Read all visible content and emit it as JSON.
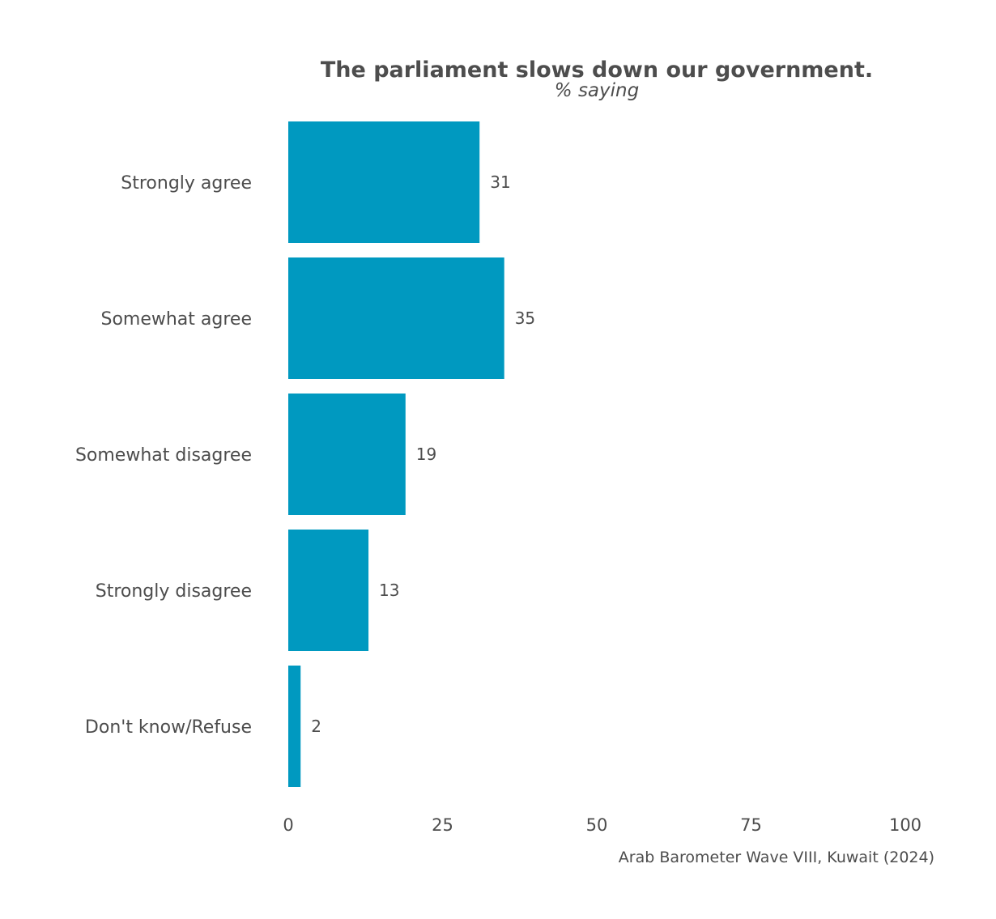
{
  "chart_data": {
    "type": "bar",
    "orientation": "horizontal",
    "title": "The parliament slows down our government.",
    "subtitle": "% saying",
    "caption": "Arab Barometer Wave VIII, Kuwait (2024)",
    "categories": [
      "Strongly agree",
      "Somewhat agree",
      "Somewhat disagree",
      "Strongly disagree",
      "Don't know/Refuse"
    ],
    "values": [
      31,
      35,
      19,
      13,
      2
    ],
    "value_labels": [
      "31",
      "35",
      "19",
      "13",
      "2"
    ],
    "xlim": [
      0,
      100
    ],
    "xticks": [
      0,
      25,
      50,
      75,
      100
    ],
    "xtick_labels": [
      "0",
      "25",
      "50",
      "75",
      "100"
    ],
    "xlabel": "",
    "ylabel": "",
    "grid": false,
    "legend": "none",
    "bar_color": "#0099c0",
    "text_color": "#4d4d4d"
  }
}
